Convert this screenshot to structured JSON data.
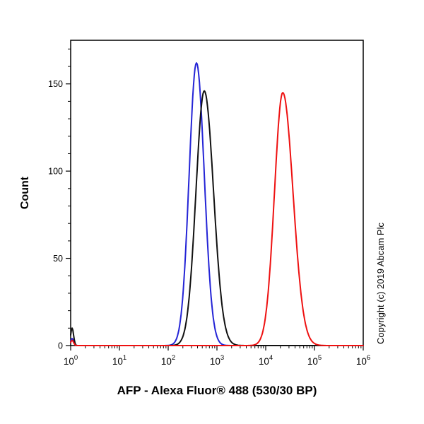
{
  "chart": {
    "ylabel": "Count",
    "xlabel": "AFP - Alexa Fluor® 488 (530/30 BP)",
    "copyright": "Copyright (c) 2019 Abcam Plc"
  },
  "chart_data": {
    "type": "line",
    "title": "",
    "xlabel": "AFP - Alexa Fluor® 488 (530/30 BP)",
    "ylabel": "Count",
    "x_scale": "log10",
    "x_exponent_range": [
      0,
      6
    ],
    "x_tick_exponents": [
      0,
      1,
      2,
      3,
      4,
      5,
      6
    ],
    "ylim": [
      0,
      175
    ],
    "y_ticks": [
      0,
      50,
      100,
      150
    ],
    "y_minor_step": 10,
    "grid": false,
    "legend": "none",
    "axis_color": "#000000",
    "series": [
      {
        "name": "blue-curve",
        "color": "#2424d6",
        "peak_log10_x": 2.58,
        "peak_count": 162,
        "sigma_left": 0.15,
        "sigma_right": 0.16,
        "edge_spike_count": 4
      },
      {
        "name": "black-curve",
        "color": "#111111",
        "peak_log10_x": 2.74,
        "peak_count": 146,
        "sigma_left": 0.17,
        "sigma_right": 0.19,
        "edge_spike_count": 10
      },
      {
        "name": "red-curve",
        "color": "#ee1111",
        "peak_log10_x": 4.35,
        "peak_count": 145,
        "sigma_left": 0.17,
        "sigma_right": 0.21,
        "edge_spike_count": 3
      }
    ]
  }
}
